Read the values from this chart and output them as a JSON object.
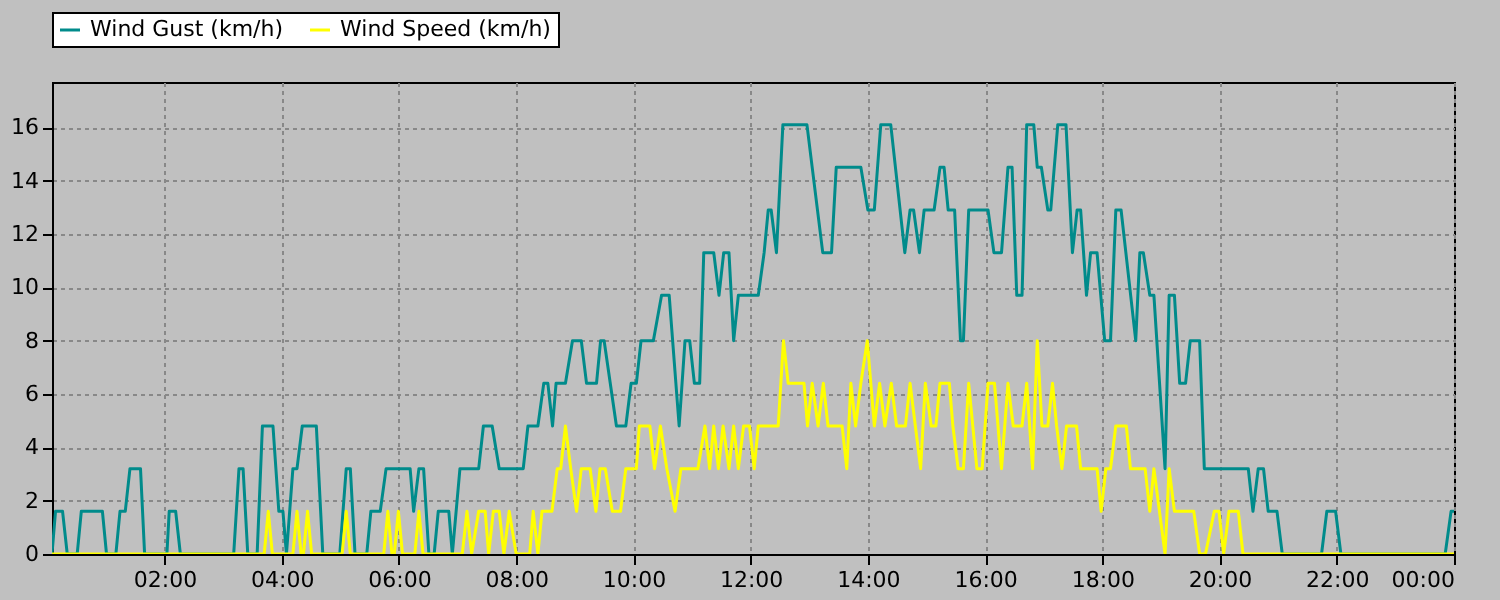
{
  "chart_data": {
    "type": "line",
    "series": [
      {
        "name": "Wind Gust (km/h)",
        "color": "#008b8b",
        "x": [
          0.08,
          0.14,
          0.26,
          0.34,
          0.51,
          0.58,
          0.94,
          1.01,
          1.17,
          1.24,
          1.33,
          1.41,
          1.59,
          1.66,
          2.04,
          2.08,
          2.19,
          2.27,
          3.18,
          3.27,
          3.34,
          3.42,
          3.58,
          3.67,
          3.85,
          3.95,
          4.02,
          4.08,
          4.19,
          4.26,
          4.35,
          4.59,
          4.7,
          4.99,
          5.1,
          5.17,
          5.25,
          5.45,
          5.52,
          5.68,
          5.78,
          6.19,
          6.25,
          6.34,
          6.42,
          6.51,
          6.6,
          6.67,
          6.85,
          6.91,
          7.04,
          7.36,
          7.44,
          7.59,
          7.71,
          8.12,
          8.2,
          8.37,
          8.47,
          8.54,
          8.62,
          8.68,
          8.84,
          8.96,
          9.11,
          9.2,
          9.37,
          9.44,
          9.5,
          9.71,
          9.87,
          9.96,
          10.05,
          10.13,
          10.34,
          10.48,
          10.61,
          10.78,
          10.88,
          10.96,
          11.04,
          11.13,
          11.2,
          11.37,
          11.46,
          11.54,
          11.63,
          11.71,
          11.79,
          12.13,
          12.23,
          12.3,
          12.35,
          12.44,
          12.55,
          12.96,
          13.05,
          13.23,
          13.38,
          13.46,
          13.88,
          14.0,
          14.11,
          14.22,
          14.39,
          14.63,
          14.72,
          14.78,
          14.88,
          14.96,
          15.13,
          15.23,
          15.3,
          15.37,
          15.48,
          15.58,
          15.63,
          15.72,
          16.05,
          16.15,
          16.28,
          16.39,
          16.46,
          16.54,
          16.63,
          16.71,
          16.83,
          16.89,
          16.96,
          17.07,
          17.12,
          17.24,
          17.38,
          17.49,
          17.57,
          17.63,
          17.73,
          17.8,
          17.91,
          18.04,
          18.14,
          18.23,
          18.32,
          18.57,
          18.64,
          18.7,
          18.81,
          18.88,
          19.07,
          19.14,
          19.23,
          19.32,
          19.42,
          19.5,
          19.66,
          19.74,
          20.49,
          20.57,
          20.66,
          20.75,
          20.83,
          20.98,
          21.07,
          21.74,
          21.83,
          21.98,
          22.07,
          23.85,
          23.95,
          24.0
        ],
        "values": [
          0,
          1.6,
          1.6,
          0,
          0,
          1.6,
          1.6,
          0,
          0,
          1.6,
          1.6,
          3.2,
          3.2,
          0,
          0,
          1.6,
          1.6,
          0,
          0,
          3.2,
          3.2,
          0,
          0,
          4.8,
          4.8,
          1.6,
          1.6,
          0,
          3.2,
          3.2,
          4.8,
          4.8,
          0,
          0,
          3.2,
          3.2,
          0,
          0,
          1.6,
          1.6,
          3.2,
          3.2,
          1.6,
          3.2,
          3.2,
          0,
          0,
          1.6,
          1.6,
          0,
          3.2,
          3.2,
          4.8,
          4.8,
          3.2,
          3.2,
          4.8,
          4.8,
          6.4,
          6.4,
          4.8,
          6.4,
          6.4,
          8.0,
          8.0,
          6.4,
          6.4,
          8.0,
          8.0,
          4.8,
          4.8,
          6.4,
          6.4,
          8.0,
          8.0,
          9.7,
          9.7,
          4.8,
          8.0,
          8.0,
          6.4,
          6.4,
          11.3,
          11.3,
          9.7,
          11.3,
          11.3,
          8.0,
          9.7,
          9.7,
          11.3,
          12.9,
          12.9,
          11.3,
          16.1,
          16.1,
          14.5,
          11.3,
          11.3,
          14.5,
          14.5,
          12.9,
          12.9,
          16.1,
          16.1,
          11.3,
          12.9,
          12.9,
          11.3,
          12.9,
          12.9,
          14.5,
          14.5,
          12.9,
          12.9,
          8.0,
          8.0,
          12.9,
          12.9,
          11.3,
          11.3,
          14.5,
          14.5,
          9.7,
          9.7,
          16.1,
          16.1,
          14.5,
          14.5,
          12.9,
          12.9,
          16.1,
          16.1,
          11.3,
          12.9,
          12.9,
          9.7,
          11.3,
          11.3,
          8.0,
          8.0,
          12.9,
          12.9,
          8.0,
          11.3,
          11.3,
          9.7,
          9.7,
          3.2,
          9.7,
          9.7,
          6.4,
          6.4,
          8.0,
          8.0,
          3.2,
          3.2,
          1.6,
          3.2,
          3.2,
          1.6,
          1.6,
          0,
          0,
          1.6,
          1.6,
          0,
          0,
          1.6,
          1.6
        ]
      },
      {
        "name": "Wind Speed (km/h)",
        "color": "#ffff00",
        "x": [
          0.08,
          3.7,
          3.77,
          3.84,
          4.19,
          4.26,
          4.33,
          4.37,
          4.44,
          4.51,
          5.03,
          5.1,
          5.17,
          5.74,
          5.81,
          5.88,
          5.92,
          5.99,
          6.06,
          6.27,
          6.34,
          6.41,
          7.08,
          7.16,
          7.24,
          7.36,
          7.47,
          7.53,
          7.61,
          7.71,
          7.79,
          7.88,
          8.0,
          8.23,
          8.29,
          8.37,
          8.44,
          8.61,
          8.7,
          8.76,
          8.84,
          8.93,
          9.03,
          9.11,
          9.26,
          9.36,
          9.43,
          9.52,
          9.64,
          9.78,
          9.87,
          10.05,
          10.1,
          10.28,
          10.36,
          10.46,
          10.57,
          10.71,
          10.81,
          11.1,
          11.22,
          11.3,
          11.37,
          11.45,
          11.53,
          11.63,
          11.71,
          11.79,
          11.88,
          11.98,
          12.06,
          12.13,
          12.47,
          12.56,
          12.64,
          12.91,
          12.97,
          13.05,
          13.15,
          13.24,
          13.32,
          13.56,
          13.64,
          13.71,
          13.79,
          13.88,
          13.99,
          14.11,
          14.2,
          14.29,
          14.4,
          14.49,
          14.64,
          14.72,
          14.81,
          14.9,
          14.98,
          15.08,
          15.16,
          15.23,
          15.39,
          15.45,
          15.54,
          15.63,
          15.72,
          15.86,
          15.95,
          16.05,
          16.16,
          16.28,
          16.39,
          16.48,
          16.63,
          16.71,
          16.81,
          16.89,
          16.97,
          17.07,
          17.15,
          17.22,
          17.31,
          17.39,
          17.56,
          17.63,
          17.91,
          17.98,
          18.06,
          18.14,
          18.23,
          18.41,
          18.48,
          18.73,
          18.81,
          18.88,
          19.07,
          19.14,
          19.23,
          19.56,
          19.66,
          19.76,
          19.91,
          19.99,
          20.07,
          20.16,
          20.32,
          20.4,
          24.0
        ],
        "values": [
          0,
          0,
          1.6,
          0,
          0,
          1.6,
          0,
          0,
          1.6,
          0,
          0,
          1.6,
          0,
          0,
          1.6,
          0,
          0,
          1.6,
          0,
          0,
          1.6,
          0,
          0,
          1.6,
          0,
          1.6,
          1.6,
          0,
          1.6,
          1.6,
          0,
          1.6,
          0,
          0,
          1.6,
          0,
          1.6,
          1.6,
          3.2,
          3.2,
          4.8,
          3.2,
          1.6,
          3.2,
          3.2,
          1.6,
          3.2,
          3.2,
          1.6,
          1.6,
          3.2,
          3.2,
          4.8,
          4.8,
          3.2,
          4.8,
          3.2,
          1.6,
          3.2,
          3.2,
          4.8,
          3.2,
          4.8,
          3.2,
          4.8,
          3.2,
          4.8,
          3.2,
          4.8,
          4.8,
          3.2,
          4.8,
          4.8,
          8.0,
          6.4,
          6.4,
          4.8,
          6.4,
          4.8,
          6.4,
          4.8,
          4.8,
          3.2,
          6.4,
          4.8,
          6.4,
          8.0,
          4.8,
          6.4,
          4.8,
          6.4,
          4.8,
          4.8,
          6.4,
          4.8,
          3.2,
          6.4,
          4.8,
          4.8,
          6.4,
          6.4,
          4.8,
          3.2,
          3.2,
          6.4,
          3.2,
          3.2,
          6.4,
          6.4,
          3.2,
          6.4,
          4.8,
          4.8,
          6.4,
          3.2,
          8.0,
          4.8,
          4.8,
          6.4,
          4.8,
          3.2,
          4.8,
          4.8,
          3.2,
          3.2,
          1.6,
          3.2,
          3.2,
          4.8,
          4.8,
          3.2,
          3.2,
          1.6,
          3.2,
          0,
          3.2,
          1.6,
          1.6,
          0,
          0,
          1.6,
          1.6,
          0,
          1.6,
          1.6,
          0,
          0
        ]
      }
    ],
    "xlim": [
      0.08,
      24.0
    ],
    "xticks": [
      {
        "value": 2,
        "label": "02:00"
      },
      {
        "value": 4,
        "label": "04:00"
      },
      {
        "value": 6,
        "label": "06:00"
      },
      {
        "value": 8,
        "label": "08:00"
      },
      {
        "value": 10,
        "label": "10:00"
      },
      {
        "value": 12,
        "label": "12:00"
      },
      {
        "value": 14,
        "label": "14:00"
      },
      {
        "value": 16,
        "label": "16:00"
      },
      {
        "value": 18,
        "label": "18:00"
      },
      {
        "value": 20,
        "label": "20:00"
      },
      {
        "value": 22,
        "label": "22:00"
      },
      {
        "value": 24,
        "label": "00:00"
      }
    ],
    "ylim": [
      0,
      17.7
    ],
    "yticks": [
      0,
      2,
      4,
      6,
      8,
      10,
      12,
      14,
      16
    ],
    "grid": true,
    "legend": "top",
    "marker": "none",
    "line_style": "solid"
  }
}
